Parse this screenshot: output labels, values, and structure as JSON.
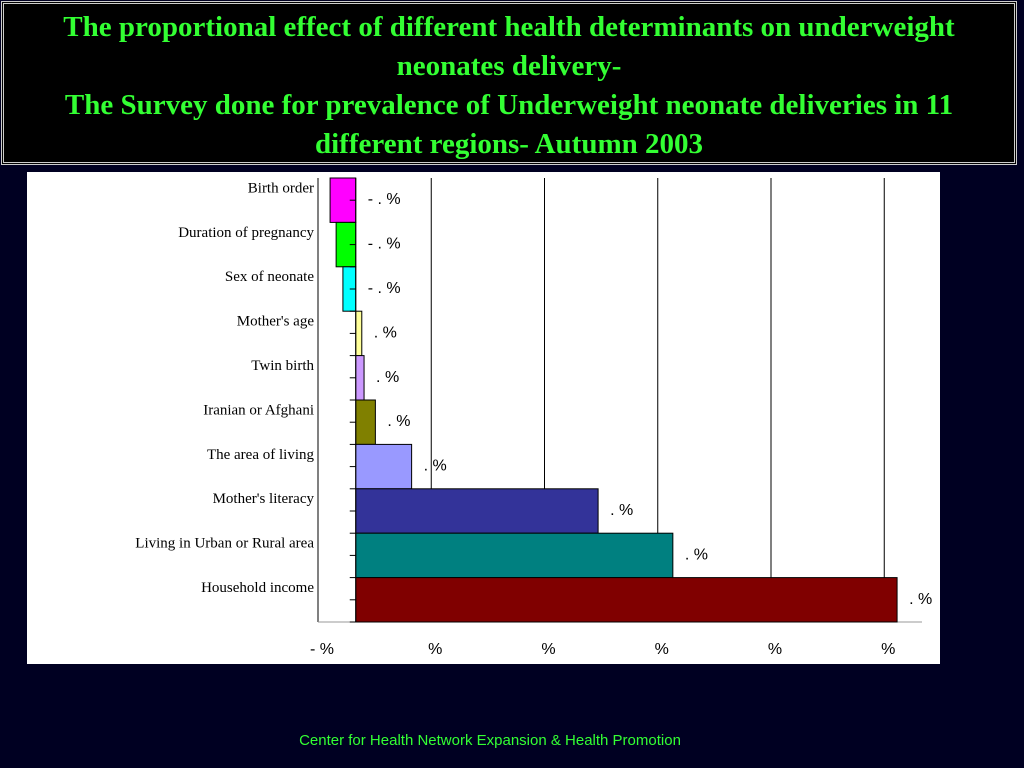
{
  "chart_data": {
    "type": "hbar",
    "title": "The proportional effect of different health determinants on underweight neonates delivery-",
    "subtitle": "The Survey done for prevalence of Underweight neonate deliveries in 11 different regions- Autumn 2003",
    "footer": "Center for Health Network Expansion & Health Promotion",
    "categories": [
      "Birth order",
      "Duration of pregnancy",
      "Sex of neonate",
      "Mother's age",
      "Twin birth",
      "Iranian or Afghani",
      "The area of living",
      "Mother's literacy",
      "Living in Urban or Rural area",
      "Household income"
    ],
    "values": [
      -3.4,
      -2.6,
      -1.7,
      0.8,
      1.1,
      2.6,
      7.4,
      32.1,
      42.0,
      71.7
    ],
    "value_labels": [
      "- . %",
      "- . %",
      "- . %",
      ". %",
      ". %",
      ". %",
      ". %",
      ". %",
      ". %",
      ". %"
    ],
    "colors": [
      "#ff00ff",
      "#00ff00",
      "#00ffff",
      "#ffff99",
      "#cc99ff",
      "#808000",
      "#9999ff",
      "#333399",
      "#008080",
      "#800000"
    ],
    "xlim": [
      -5,
      75
    ],
    "xticks": [
      {
        "value": -5,
        "label": "- %"
      },
      {
        "value": 10,
        "label": "%"
      },
      {
        "value": 25,
        "label": "%"
      },
      {
        "value": 40,
        "label": "%"
      },
      {
        "value": 55,
        "label": "%"
      },
      {
        "value": 70,
        "label": "%"
      }
    ],
    "grid": true
  }
}
